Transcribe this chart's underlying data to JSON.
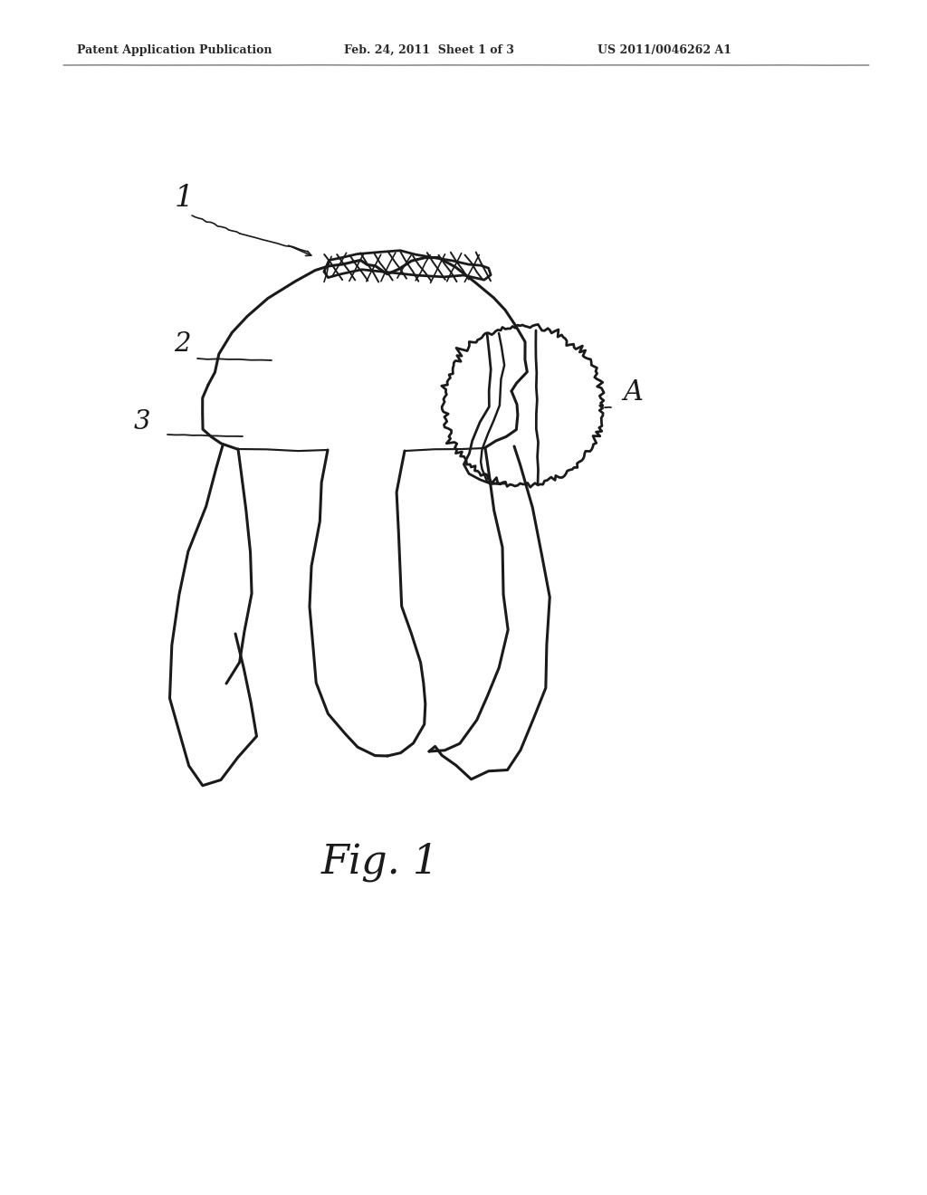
{
  "bg_color": "#ffffff",
  "line_color": "#1a1a1a",
  "header_left": "Patent Application Publication",
  "header_mid": "Feb. 24, 2011  Sheet 1 of 3",
  "header_right": "US 2011/0046262 A1",
  "fig_label": "Fig. 1",
  "label_1": "1",
  "label_2": "2",
  "label_3": "3",
  "label_A": "A"
}
